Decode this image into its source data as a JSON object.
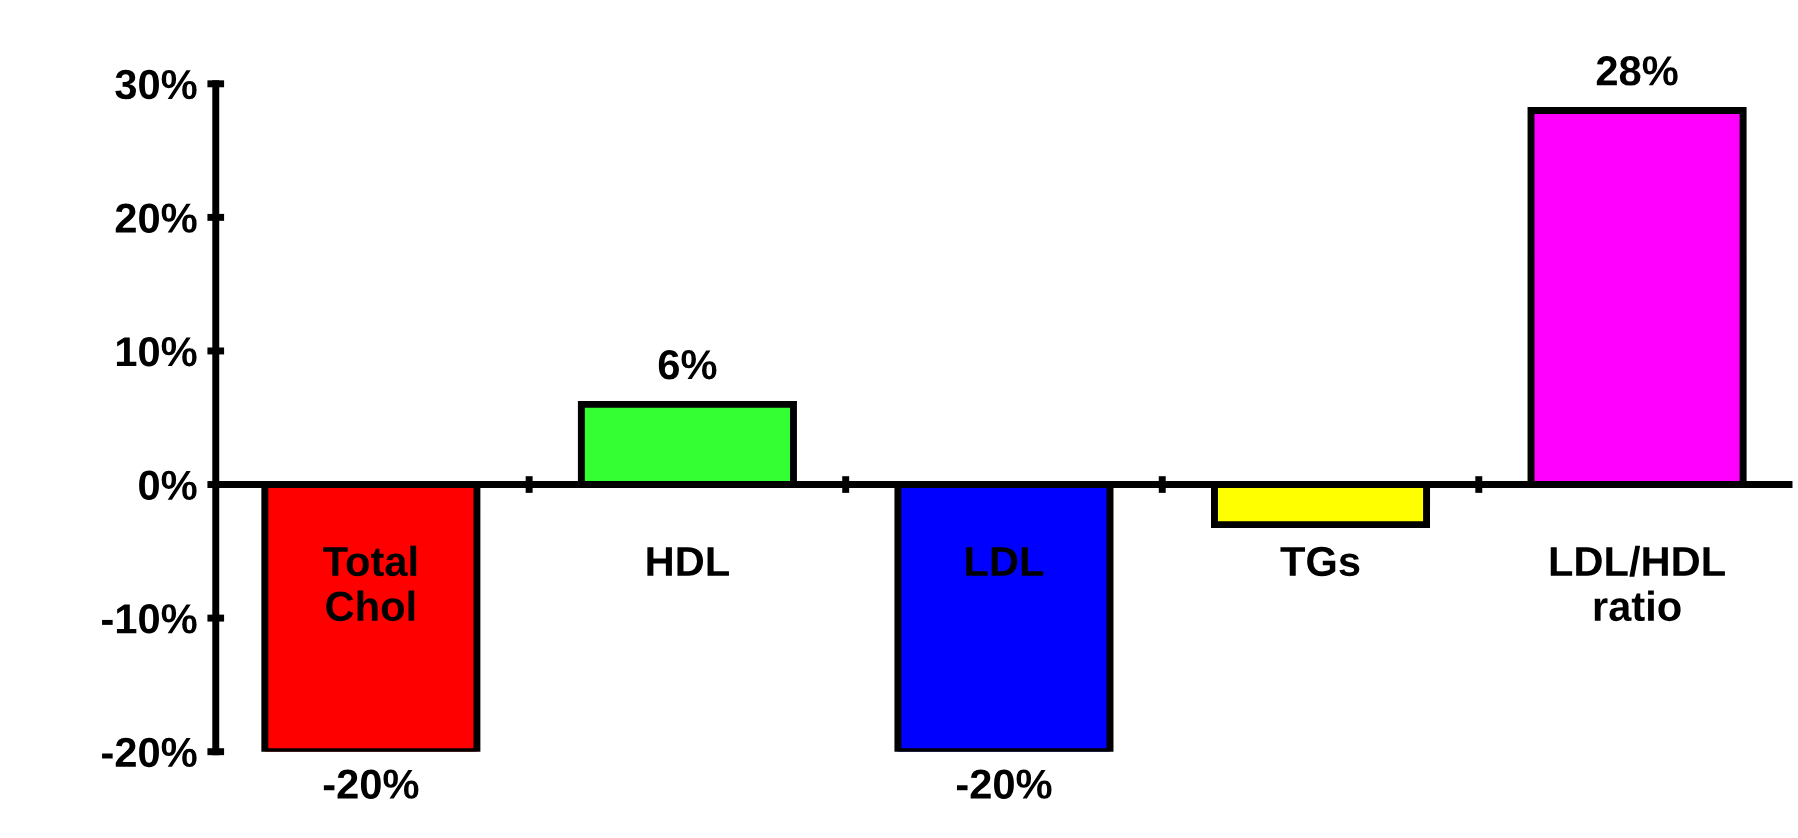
{
  "chart_data": {
    "type": "bar",
    "categories": [
      "Total\nChol",
      "HDL",
      "LDL",
      "TGs",
      "LDL/HDL\nratio"
    ],
    "values": [
      -20,
      6,
      -20,
      -3,
      28
    ],
    "colors": [
      "#ff0000",
      "#33ff33",
      "#0000ff",
      "#ffff00",
      "#ff00ff"
    ],
    "value_labels": [
      "-20%",
      "6%",
      "-20%",
      null,
      "28%"
    ],
    "ylim": [
      -20,
      30
    ],
    "yticks": [
      {
        "value": -20,
        "label": "-20%"
      },
      {
        "value": -10,
        "label": "-10%"
      },
      {
        "value": 0,
        "label": "0%"
      },
      {
        "value": 10,
        "label": "10%"
      },
      {
        "value": 20,
        "label": "20%"
      },
      {
        "value": 30,
        "label": "30%"
      }
    ],
    "grid": false,
    "legend": false
  }
}
